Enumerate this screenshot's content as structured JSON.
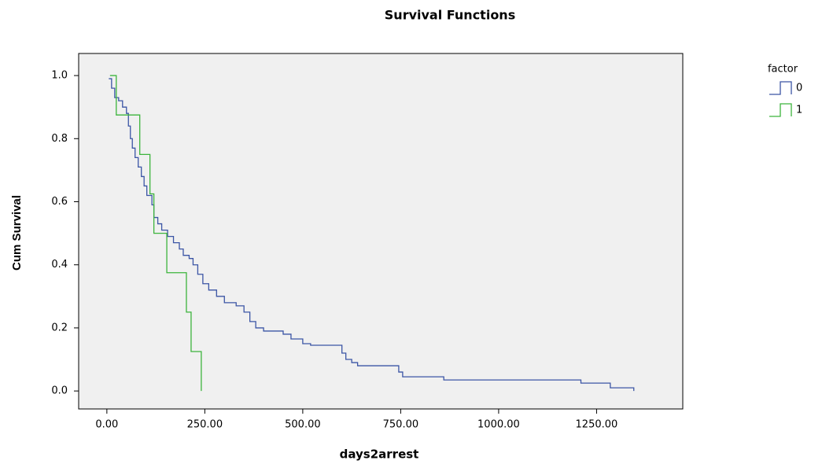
{
  "chart_data": {
    "type": "step",
    "title": "Survival Functions",
    "x_label": "days2arrest",
    "y_label": "Cum Survival",
    "legend_title": "factor",
    "legend_position": "right",
    "xlim": [
      -72,
      1470
    ],
    "ylim": [
      -0.057,
      1.07
    ],
    "xticks": [
      {
        "value": 0,
        "label": "0.00"
      },
      {
        "value": 250,
        "label": "250.00"
      },
      {
        "value": 500,
        "label": "500.00"
      },
      {
        "value": 750,
        "label": "750.00"
      },
      {
        "value": 1000,
        "label": "1000.00"
      },
      {
        "value": 1250,
        "label": "1250.00"
      }
    ],
    "yticks": [
      {
        "value": 0,
        "label": "0.0"
      },
      {
        "value": 0.2,
        "label": "0.2"
      },
      {
        "value": 0.4,
        "label": "0.4"
      },
      {
        "value": 0.6,
        "label": "0.6"
      },
      {
        "value": 0.8,
        "label": "0.8"
      },
      {
        "value": 1,
        "label": "1.0"
      }
    ],
    "series": [
      {
        "name": "0",
        "color": "#3b55a5",
        "x": [
          5,
          12,
          20,
          30,
          40,
          50,
          55,
          60,
          65,
          72,
          80,
          88,
          95,
          102,
          115,
          120,
          130,
          140,
          155,
          170,
          185,
          195,
          210,
          220,
          232,
          245,
          260,
          280,
          300,
          330,
          350,
          365,
          380,
          400,
          450,
          470,
          500,
          520,
          600,
          610,
          625,
          640,
          745,
          755,
          860,
          1210,
          1285,
          1345
        ],
        "values": [
          0.99,
          0.96,
          0.93,
          0.92,
          0.9,
          0.88,
          0.84,
          0.8,
          0.77,
          0.74,
          0.71,
          0.68,
          0.65,
          0.62,
          0.59,
          0.55,
          0.53,
          0.51,
          0.49,
          0.47,
          0.45,
          0.43,
          0.42,
          0.4,
          0.37,
          0.34,
          0.32,
          0.3,
          0.28,
          0.27,
          0.25,
          0.22,
          0.2,
          0.19,
          0.18,
          0.165,
          0.15,
          0.145,
          0.12,
          0.1,
          0.09,
          0.08,
          0.06,
          0.045,
          0.035,
          0.025,
          0.01,
          0
        ]
      },
      {
        "name": "1",
        "color": "#3cb43c",
        "x": [
          8,
          24,
          84,
          110,
          120,
          153,
          203,
          215,
          241
        ],
        "values": [
          1,
          0.875,
          0.75,
          0.625,
          0.5,
          0.375,
          0.25,
          0.125,
          0
        ]
      }
    ]
  }
}
